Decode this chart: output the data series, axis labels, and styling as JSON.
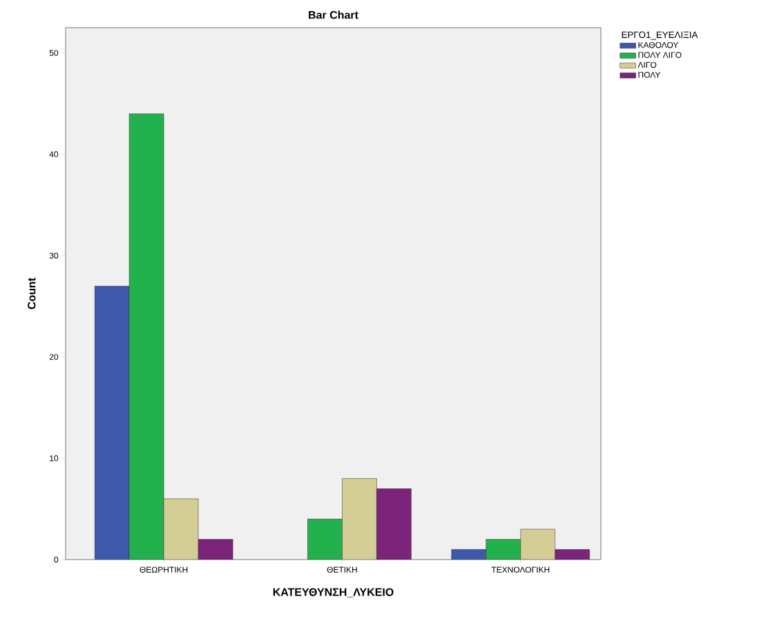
{
  "chart_data": {
    "type": "bar",
    "title": "Bar Chart",
    "xlabel": "ΚΑΤΕΥΘΥΝΣΗ_ΛΥΚΕΙΟ",
    "ylabel": "Count",
    "legend_title": "ΕΡΓΟ1_ΕΥΕΛΙΞΙΑ",
    "categories": [
      "ΘΕΩΡΗΤΙΚΗ",
      "ΘΕΤΙΚΗ",
      "ΤΕΧΝΟΛΟΓΙΚΗ"
    ],
    "series": [
      {
        "name": "ΚΑΘΟΛΟΥ",
        "color": "#3e58ac",
        "values": [
          27,
          null,
          1
        ]
      },
      {
        "name": "ΠΟΛΥ ΛΙΓΟ",
        "color": "#22b14c",
        "values": [
          44,
          4,
          2
        ]
      },
      {
        "name": "ΛΙΓΟ",
        "color": "#d4cd96",
        "values": [
          6,
          8,
          3
        ]
      },
      {
        "name": "ΠΟΛΥ",
        "color": "#7b2479",
        "values": [
          2,
          7,
          1
        ]
      }
    ],
    "ylim": [
      0,
      52.5
    ],
    "yticks": [
      0,
      10,
      20,
      30,
      40,
      50
    ],
    "legend": "top right"
  }
}
